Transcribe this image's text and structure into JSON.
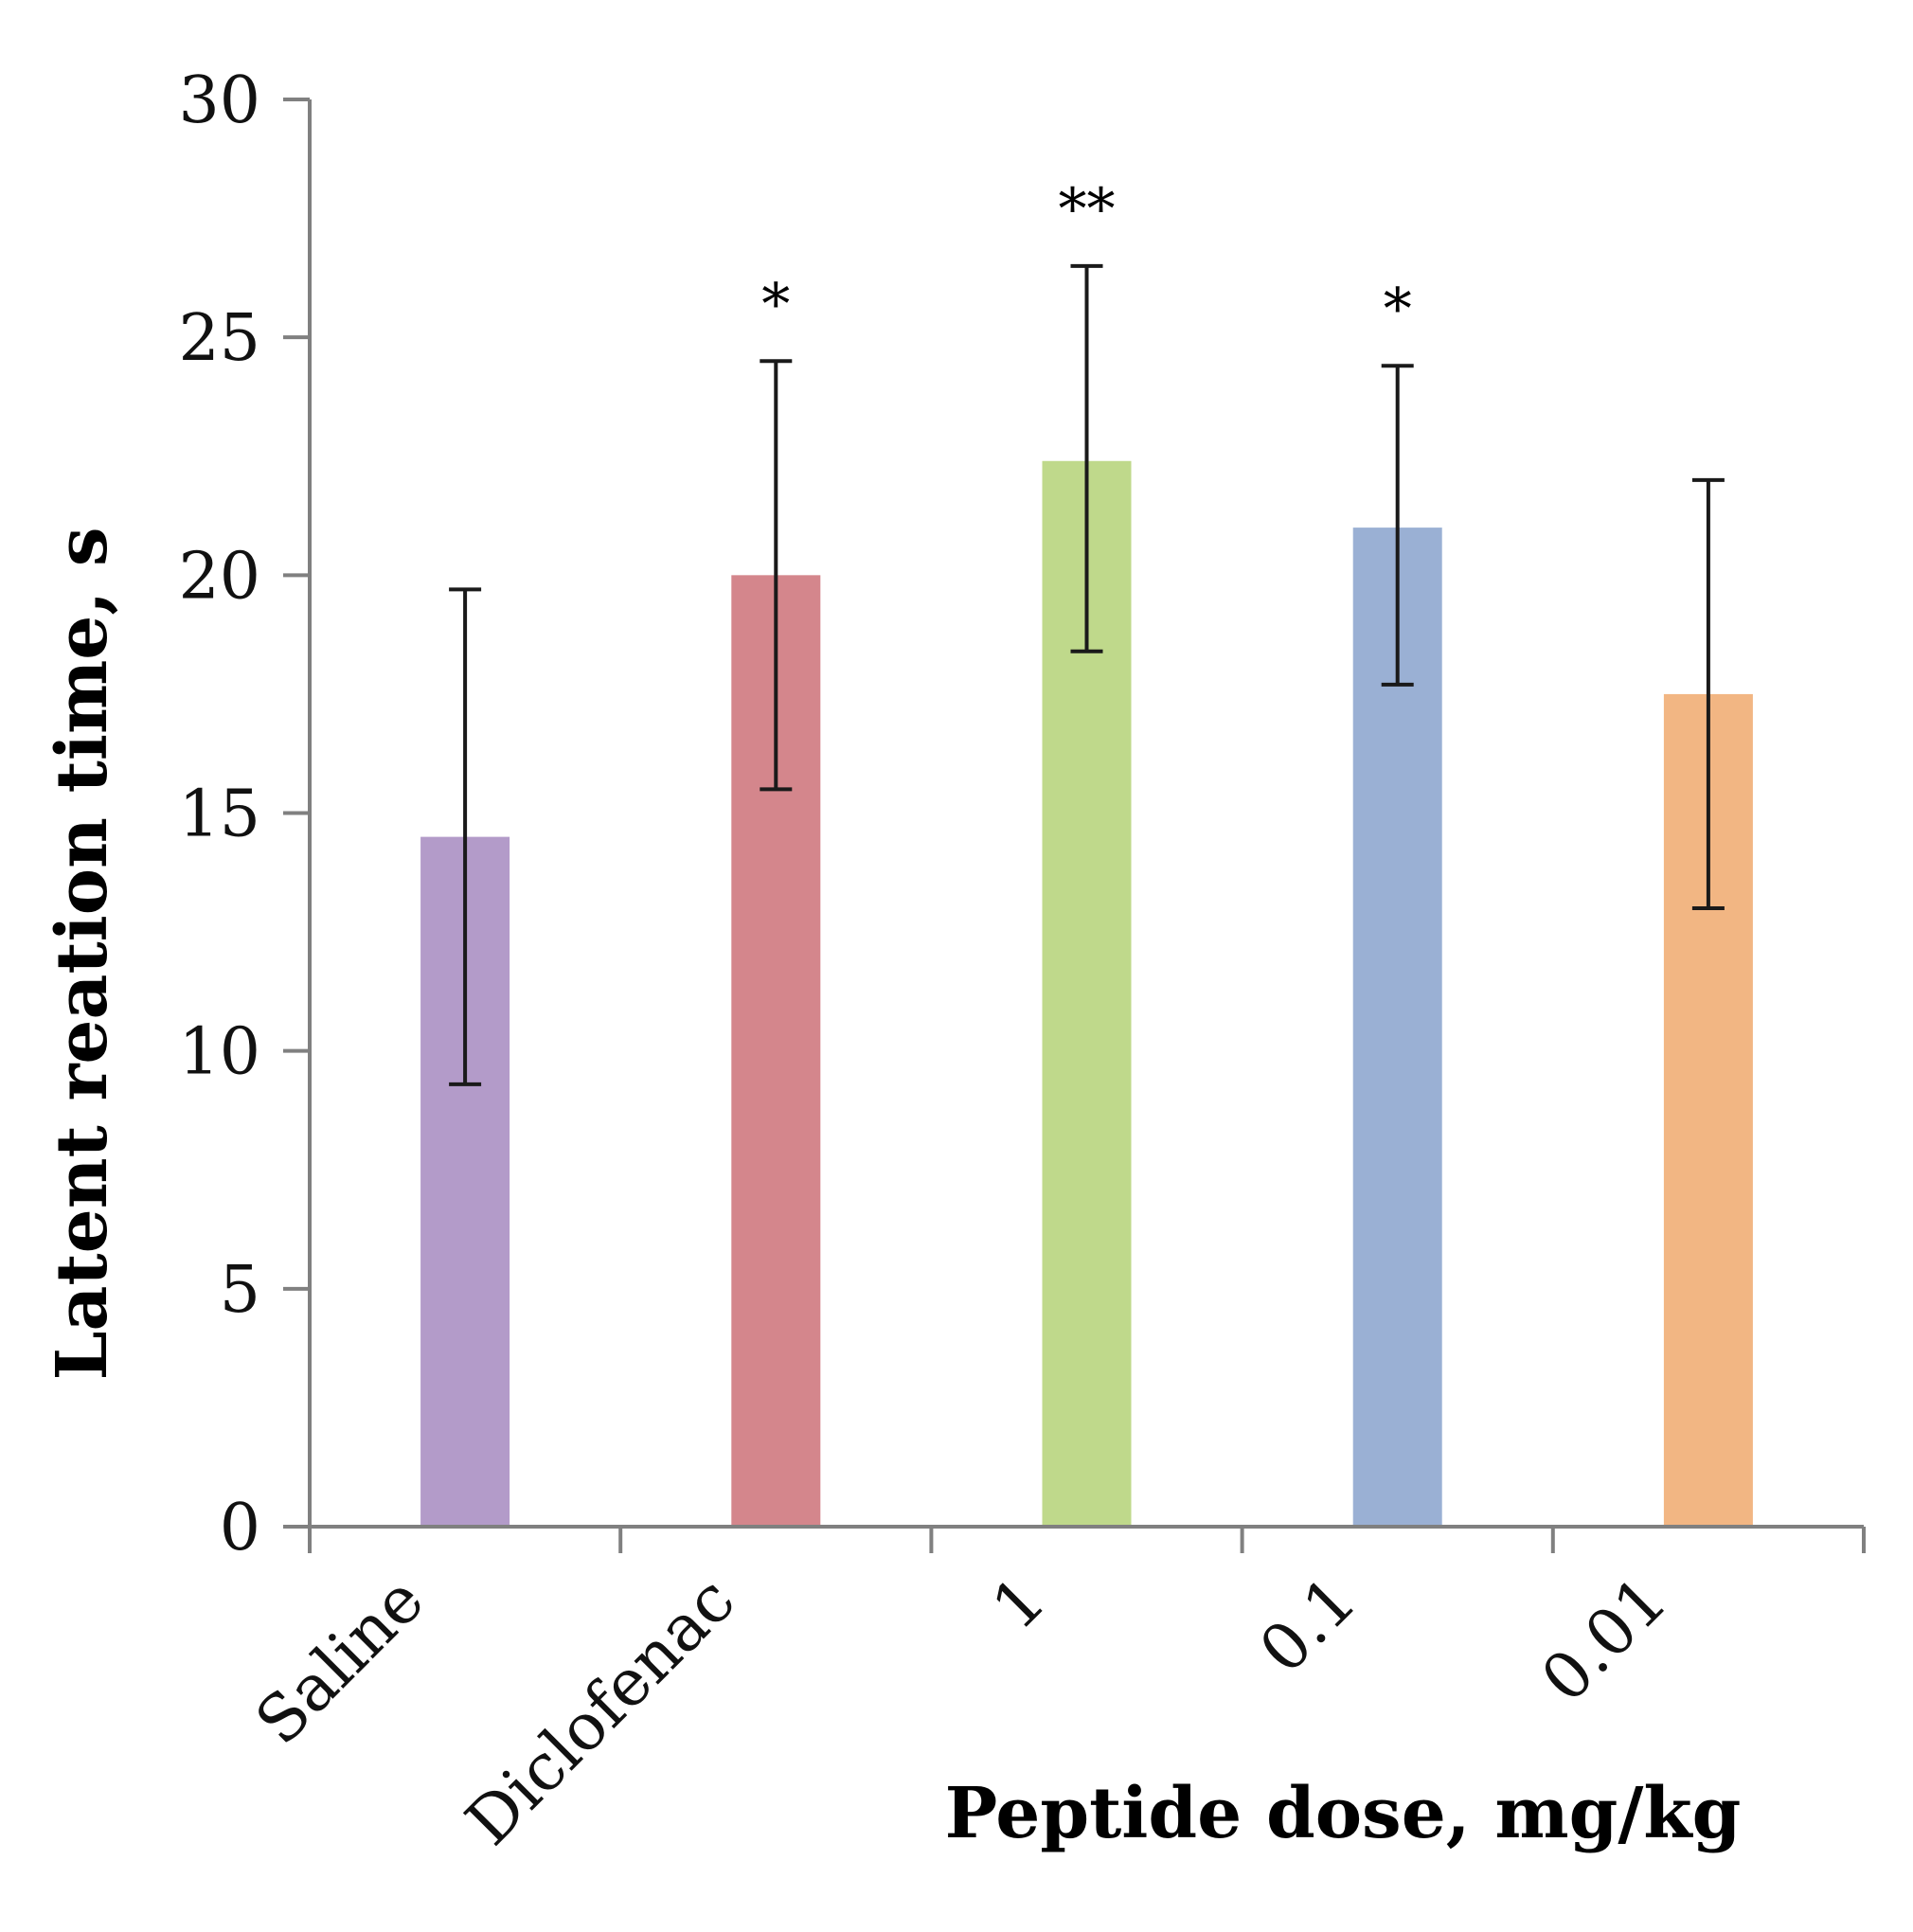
{
  "chart_data": {
    "type": "bar",
    "title": "",
    "xlabel": "Peptide dose, mg/kg",
    "ylabel": "Latent reation time, s",
    "ylim": [
      0,
      30
    ],
    "yticks": [
      0,
      5,
      10,
      15,
      20,
      25,
      30
    ],
    "ytick_labels": [
      "0",
      "5",
      "10",
      "15",
      "20",
      "25",
      "30"
    ],
    "grid": false,
    "legend": "none",
    "categories": [
      "Saline",
      "Diclofenac",
      "1",
      "0.1",
      "0.01"
    ],
    "values": [
      14.5,
      20.0,
      22.4,
      21.0,
      17.5
    ],
    "error_low": [
      9.3,
      15.5,
      18.4,
      17.7,
      13.0
    ],
    "error_high": [
      19.7,
      24.5,
      26.5,
      24.4,
      22.0
    ],
    "significance": [
      "",
      "*",
      "**",
      "*",
      ""
    ],
    "colors": [
      "#b39bc9",
      "#d4868c",
      "#bfd98b",
      "#9ab0d4",
      "#f2b683"
    ],
    "axis_color": "#808080",
    "error_bar_color": "#1a1a1a"
  }
}
